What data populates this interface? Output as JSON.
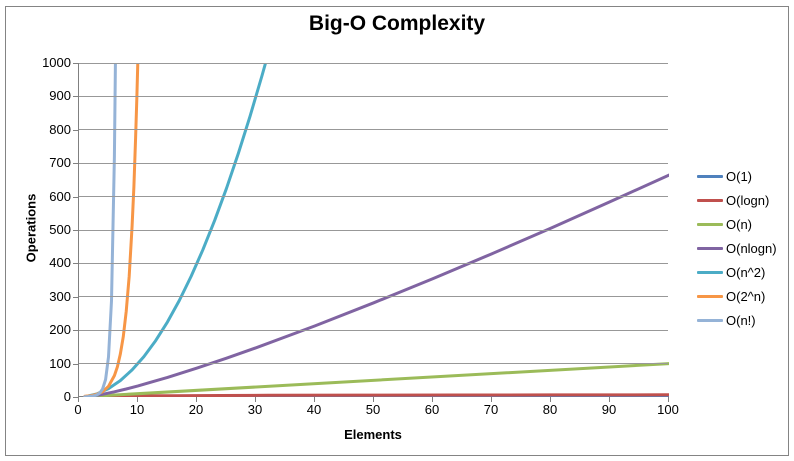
{
  "colors": {
    "border": "#848484",
    "axis": "#808080",
    "gridline": "#989898",
    "background": "#FFFFFF",
    "text": "#000000"
  },
  "chart_data": {
    "type": "line",
    "title": "Big-O Complexity",
    "xlabel": "Elements",
    "ylabel": "Operations",
    "xlim": [
      0,
      100
    ],
    "ylim": [
      0,
      1000
    ],
    "xticks": [
      0,
      10,
      20,
      30,
      40,
      50,
      60,
      70,
      80,
      90,
      100
    ],
    "yticks": [
      0,
      100,
      200,
      300,
      400,
      500,
      600,
      700,
      800,
      900,
      1000
    ],
    "grid": "horizontal",
    "legend_position": "right",
    "series": [
      {
        "name": "O(1)",
        "color": "#4F81BD",
        "x": [
          1,
          100
        ],
        "y": [
          1,
          1
        ]
      },
      {
        "name": "O(logn)",
        "color": "#C0504D",
        "x": [
          1,
          1.5,
          2,
          3,
          4,
          6,
          8,
          12,
          16,
          24,
          32,
          48,
          64,
          80,
          100
        ],
        "y": [
          0,
          0.58,
          1,
          1.58,
          2,
          2.58,
          3,
          3.58,
          4,
          4.58,
          5,
          5.58,
          6,
          6.32,
          6.64
        ]
      },
      {
        "name": "O(n)",
        "color": "#9BBB59",
        "x": [
          1,
          100
        ],
        "y": [
          1,
          100
        ]
      },
      {
        "name": "O(nlogn)",
        "color": "#8064A2",
        "x": [
          1,
          2,
          4,
          6,
          8,
          10,
          15,
          20,
          25,
          30,
          40,
          50,
          60,
          70,
          80,
          90,
          100
        ],
        "y": [
          0,
          2,
          8,
          15.5,
          24,
          33.2,
          58.6,
          86.4,
          116.1,
          147.2,
          212.9,
          282.2,
          354.4,
          429.0,
          505.8,
          584.3,
          664.4
        ]
      },
      {
        "name": "O(n^2)",
        "color": "#4BACC6",
        "x": [
          1,
          3,
          5,
          7,
          9,
          11,
          13,
          15,
          17,
          19,
          21,
          23,
          25,
          27,
          29,
          31,
          31.8
        ],
        "y": [
          1,
          9,
          25,
          49,
          81,
          121,
          169,
          225,
          289,
          361,
          441,
          529,
          625,
          729,
          841,
          961,
          1011
        ]
      },
      {
        "name": "O(2^n)",
        "color": "#F79646",
        "x": [
          1,
          2,
          3,
          4,
          5,
          6,
          6.5,
          7,
          7.5,
          8,
          8.5,
          9,
          9.3,
          9.6,
          9.8,
          10
        ],
        "y": [
          2,
          4,
          8,
          16,
          32,
          64,
          90.5,
          128,
          181,
          256,
          362,
          512,
          630,
          776,
          891,
          1024
        ]
      },
      {
        "name": "O(n!)",
        "color": "#95B3D7",
        "x": [
          1,
          1.5,
          2,
          2.5,
          3,
          3.5,
          4,
          4.5,
          5,
          5.5,
          6,
          6.2,
          6.35
        ],
        "y": [
          1,
          1.33,
          2,
          3.32,
          6,
          11.63,
          24,
          52.3,
          120,
          287.9,
          720,
          1050,
          1400
        ]
      }
    ]
  }
}
